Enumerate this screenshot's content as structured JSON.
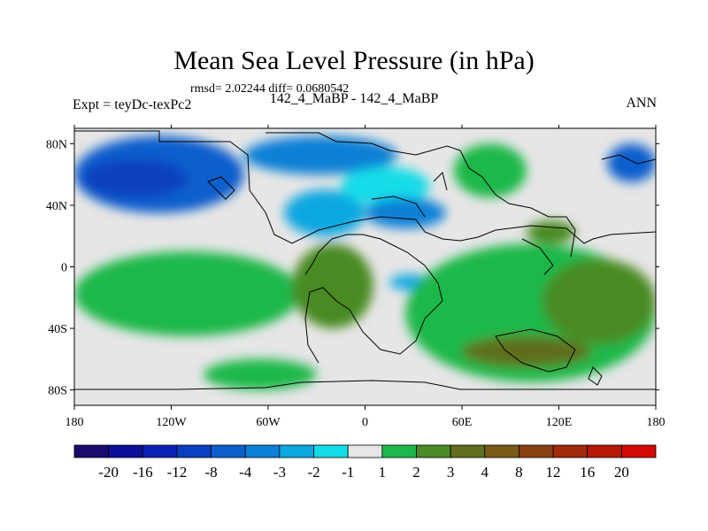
{
  "chart_data": {
    "type": "heatmap",
    "title": "Mean Sea Level Pressure (in hPa)",
    "stats": "rmsd= 2.02244 diff= 0.0680542",
    "left_label": "Expt = teyDc-texPc2",
    "center_label": "142_4_MaBP - 142_4_MaBP",
    "right_label": "ANN",
    "xlim": [
      -180,
      180
    ],
    "ylim": [
      -90,
      90
    ],
    "x_ticks": [
      {
        "value": -180,
        "label": "180"
      },
      {
        "value": -120,
        "label": "120W"
      },
      {
        "value": -60,
        "label": "60W"
      },
      {
        "value": 0,
        "label": "0"
      },
      {
        "value": 60,
        "label": "60E"
      },
      {
        "value": 120,
        "label": "120E"
      },
      {
        "value": 180,
        "label": "180"
      }
    ],
    "y_ticks": [
      {
        "value": 80,
        "label": "80N"
      },
      {
        "value": 40,
        "label": "40N"
      },
      {
        "value": 0,
        "label": "0"
      },
      {
        "value": -40,
        "label": "40S"
      },
      {
        "value": -80,
        "label": "80S"
      }
    ],
    "colorbar": {
      "colors": [
        "#1a0a6e",
        "#0c0f9a",
        "#0b21b5",
        "#0a3fbf",
        "#0d5fcd",
        "#0a80d6",
        "#0aa7e0",
        "#14dce8",
        "#e6e6e6",
        "#1eb84a",
        "#4a8a24",
        "#5f6e1e",
        "#7a5a14",
        "#8a4010",
        "#a02a0a",
        "#b81808",
        "#d40804"
      ],
      "labels": [
        "-20",
        "-16",
        "-12",
        "-8",
        "-4",
        "-3",
        "-2",
        "-1",
        "1",
        "2",
        "3",
        "4",
        "8",
        "12",
        "16",
        "20"
      ]
    },
    "regions": [
      {
        "class": "-4",
        "color": "#0d5fcd",
        "lon": [
          -180,
          -75
        ],
        "lat": [
          35,
          85
        ]
      },
      {
        "class": "-8",
        "color": "#0a3fbf",
        "lon": [
          -175,
          -110
        ],
        "lat": [
          45,
          70
        ]
      },
      {
        "class": "-3",
        "color": "#0a80d6",
        "lon": [
          -75,
          20
        ],
        "lat": [
          60,
          85
        ]
      },
      {
        "class": "-2",
        "color": "#0aa7e0",
        "lon": [
          -50,
          0
        ],
        "lat": [
          20,
          50
        ]
      },
      {
        "class": "-1",
        "color": "#14dce8",
        "lon": [
          -15,
          40
        ],
        "lat": [
          40,
          65
        ]
      },
      {
        "class": "-3",
        "color": "#0a80d6",
        "lon": [
          0,
          50
        ],
        "lat": [
          25,
          45
        ]
      },
      {
        "class": "-2",
        "color": "#0aa7e0",
        "lon": [
          15,
          40
        ],
        "lat": [
          -15,
          -5
        ]
      },
      {
        "class": "-4",
        "color": "#0d5fcd",
        "lon": [
          150,
          180
        ],
        "lat": [
          55,
          80
        ]
      },
      {
        "class": "2",
        "color": "#1eb84a",
        "lon": [
          -180,
          -40
        ],
        "lat": [
          -45,
          10
        ]
      },
      {
        "class": "3",
        "color": "#4a8a24",
        "lon": [
          -45,
          5
        ],
        "lat": [
          -40,
          15
        ]
      },
      {
        "class": "2",
        "color": "#1eb84a",
        "lon": [
          55,
          100
        ],
        "lat": [
          45,
          80
        ]
      },
      {
        "class": "2",
        "color": "#1eb84a",
        "lon": [
          25,
          180
        ],
        "lat": [
          -75,
          15
        ]
      },
      {
        "class": "3",
        "color": "#4a8a24",
        "lon": [
          110,
          180
        ],
        "lat": [
          -50,
          5
        ]
      },
      {
        "class": "4",
        "color": "#5f6e1e",
        "lon": [
          60,
          140
        ],
        "lat": [
          -65,
          -45
        ]
      },
      {
        "class": "3",
        "color": "#4a8a24",
        "lon": [
          100,
          130
        ],
        "lat": [
          15,
          30
        ]
      },
      {
        "class": "2",
        "color": "#1eb84a",
        "lon": [
          -100,
          -30
        ],
        "lat": [
          -80,
          -60
        ]
      }
    ]
  }
}
